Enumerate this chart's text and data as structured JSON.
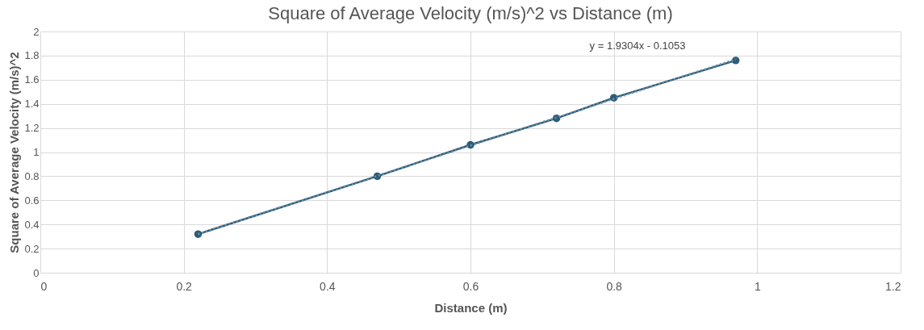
{
  "chart_data": {
    "type": "line",
    "title": "Square of Average Velocity (m/s)^2 vs Distance (m)",
    "xlabel": "Distance (m)",
    "ylabel": "Square of Average Velocity (m/s)^2",
    "x": [
      0.22,
      0.47,
      0.6,
      0.72,
      0.8,
      0.97
    ],
    "series": [
      {
        "color": "#2e5d7a",
        "values": [
          0.32,
          0.8,
          1.06,
          1.28,
          1.45,
          1.76
        ],
        "marker": "circle",
        "line_style": "solid"
      },
      {
        "type": "line",
        "color": "#6f8fa5",
        "x": [
          0.22,
          0.97
        ],
        "values": [
          0.32,
          1.77
        ],
        "marker": "none",
        "line_style": "dotted"
      }
    ],
    "annotations": [
      "y = 1.9304x - 0.1053"
    ],
    "xlim": [
      0,
      1.2
    ],
    "xticks": [
      0,
      0.2,
      0.4,
      0.6,
      0.8,
      1,
      1.2
    ],
    "ylim": [
      0,
      2
    ],
    "yticks": [
      0,
      0.2,
      0.4,
      0.6,
      0.8,
      1,
      1.2,
      1.4,
      1.6,
      1.8,
      2
    ],
    "grid": true
  }
}
